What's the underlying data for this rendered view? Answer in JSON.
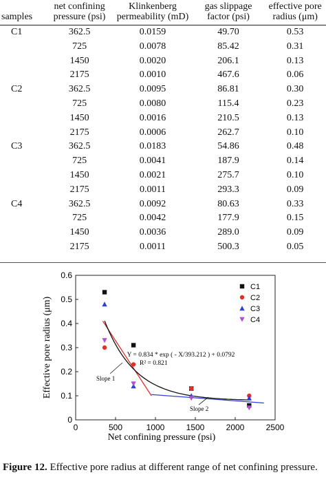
{
  "table": {
    "headers": {
      "samples": "samples",
      "pressure_l1": "net confining",
      "pressure_l2": "pressure (psi)",
      "perm_l1": "Klinkenberg",
      "perm_l2": "permeability (mD)",
      "gas_l1": "gas slippage",
      "gas_l2": "factor (psi)",
      "radius_l1": "effective pore",
      "radius_l2": "radius (μm)"
    },
    "rows": [
      {
        "sample": "C1",
        "pressure": "362.5",
        "perm": "0.0159",
        "gas": "49.70",
        "radius": "0.53"
      },
      {
        "sample": "",
        "pressure": "725",
        "perm": "0.0078",
        "gas": "85.42",
        "radius": "0.31"
      },
      {
        "sample": "",
        "pressure": "1450",
        "perm": "0.0020",
        "gas": "206.1",
        "radius": "0.13"
      },
      {
        "sample": "",
        "pressure": "2175",
        "perm": "0.0010",
        "gas": "467.6",
        "radius": "0.06"
      },
      {
        "sample": "C2",
        "pressure": "362.5",
        "perm": "0.0095",
        "gas": "86.81",
        "radius": "0.30"
      },
      {
        "sample": "",
        "pressure": "725",
        "perm": "0.0080",
        "gas": "115.4",
        "radius": "0.23"
      },
      {
        "sample": "",
        "pressure": "1450",
        "perm": "0.0016",
        "gas": "210.5",
        "radius": "0.13"
      },
      {
        "sample": "",
        "pressure": "2175",
        "perm": "0.0006",
        "gas": "262.7",
        "radius": "0.10"
      },
      {
        "sample": "C3",
        "pressure": "362.5",
        "perm": "0.0183",
        "gas": "54.86",
        "radius": "0.48"
      },
      {
        "sample": "",
        "pressure": "725",
        "perm": "0.0041",
        "gas": "187.9",
        "radius": "0.14"
      },
      {
        "sample": "",
        "pressure": "1450",
        "perm": "0.0021",
        "gas": "275.7",
        "radius": "0.10"
      },
      {
        "sample": "",
        "pressure": "2175",
        "perm": "0.0011",
        "gas": "293.3",
        "radius": "0.09"
      },
      {
        "sample": "C4",
        "pressure": "362.5",
        "perm": "0.0092",
        "gas": "80.63",
        "radius": "0.33"
      },
      {
        "sample": "",
        "pressure": "725",
        "perm": "0.0042",
        "gas": "177.9",
        "radius": "0.15"
      },
      {
        "sample": "",
        "pressure": "1450",
        "perm": "0.0036",
        "gas": "289.0",
        "radius": "0.09"
      },
      {
        "sample": "",
        "pressure": "2175",
        "perm": "0.0011",
        "gas": "500.3",
        "radius": "0.05"
      }
    ]
  },
  "caption": {
    "label": "Figure 12.",
    "text": "Effective pore radius at different range of net confining pressure."
  },
  "chart_data": {
    "type": "scatter",
    "xlabel": "Net confining pressure (psi)",
    "ylabel": "Effective pore radius (μm)",
    "xlim": [
      0,
      2500
    ],
    "ylim": [
      0,
      0.6
    ],
    "x_ticks": [
      "0",
      "500",
      "1000",
      "1500",
      "2000",
      "2500"
    ],
    "y_ticks": [
      "0",
      "0.1",
      "0.2",
      "0.3",
      "0.4",
      "0.5",
      "0.6"
    ],
    "legend_position": "top-right",
    "series": [
      {
        "name": "C1",
        "marker": "square",
        "color": "#111111",
        "x": [
          362.5,
          725,
          1450,
          2175
        ],
        "y": [
          0.53,
          0.31,
          0.13,
          0.06
        ]
      },
      {
        "name": "C2",
        "marker": "circle",
        "color": "#e0302a",
        "x": [
          362.5,
          725,
          1450,
          2175
        ],
        "y": [
          0.3,
          0.23,
          0.13,
          0.1
        ]
      },
      {
        "name": "C3",
        "marker": "triangle-up",
        "color": "#2f3fd8",
        "x": [
          362.5,
          725,
          1450,
          2175
        ],
        "y": [
          0.48,
          0.14,
          0.1,
          0.09
        ]
      },
      {
        "name": "C4",
        "marker": "triangle-down",
        "color": "#b14fd6",
        "x": [
          362.5,
          725,
          1450,
          2175
        ],
        "y": [
          0.33,
          0.15,
          0.09,
          0.05
        ]
      }
    ],
    "fit_curve": {
      "label_l1": "Y = 0.834 * exp ( - X/393.212 ) + 0.0792",
      "label_l2": "R² = 0.821",
      "a": 0.834,
      "t": 393.212,
      "c": 0.0792,
      "x_range": [
        362.5,
        2175
      ],
      "color": "#111111"
    },
    "slope_lines": [
      {
        "label": "Slope 1",
        "color": "#e0302a",
        "x": [
          340,
          950
        ],
        "y": [
          0.41,
          0.1
        ]
      },
      {
        "label": "Slope 2",
        "color": "#2f3fd8",
        "x": [
          950,
          2360
        ],
        "y": [
          0.105,
          0.07
        ]
      }
    ]
  }
}
